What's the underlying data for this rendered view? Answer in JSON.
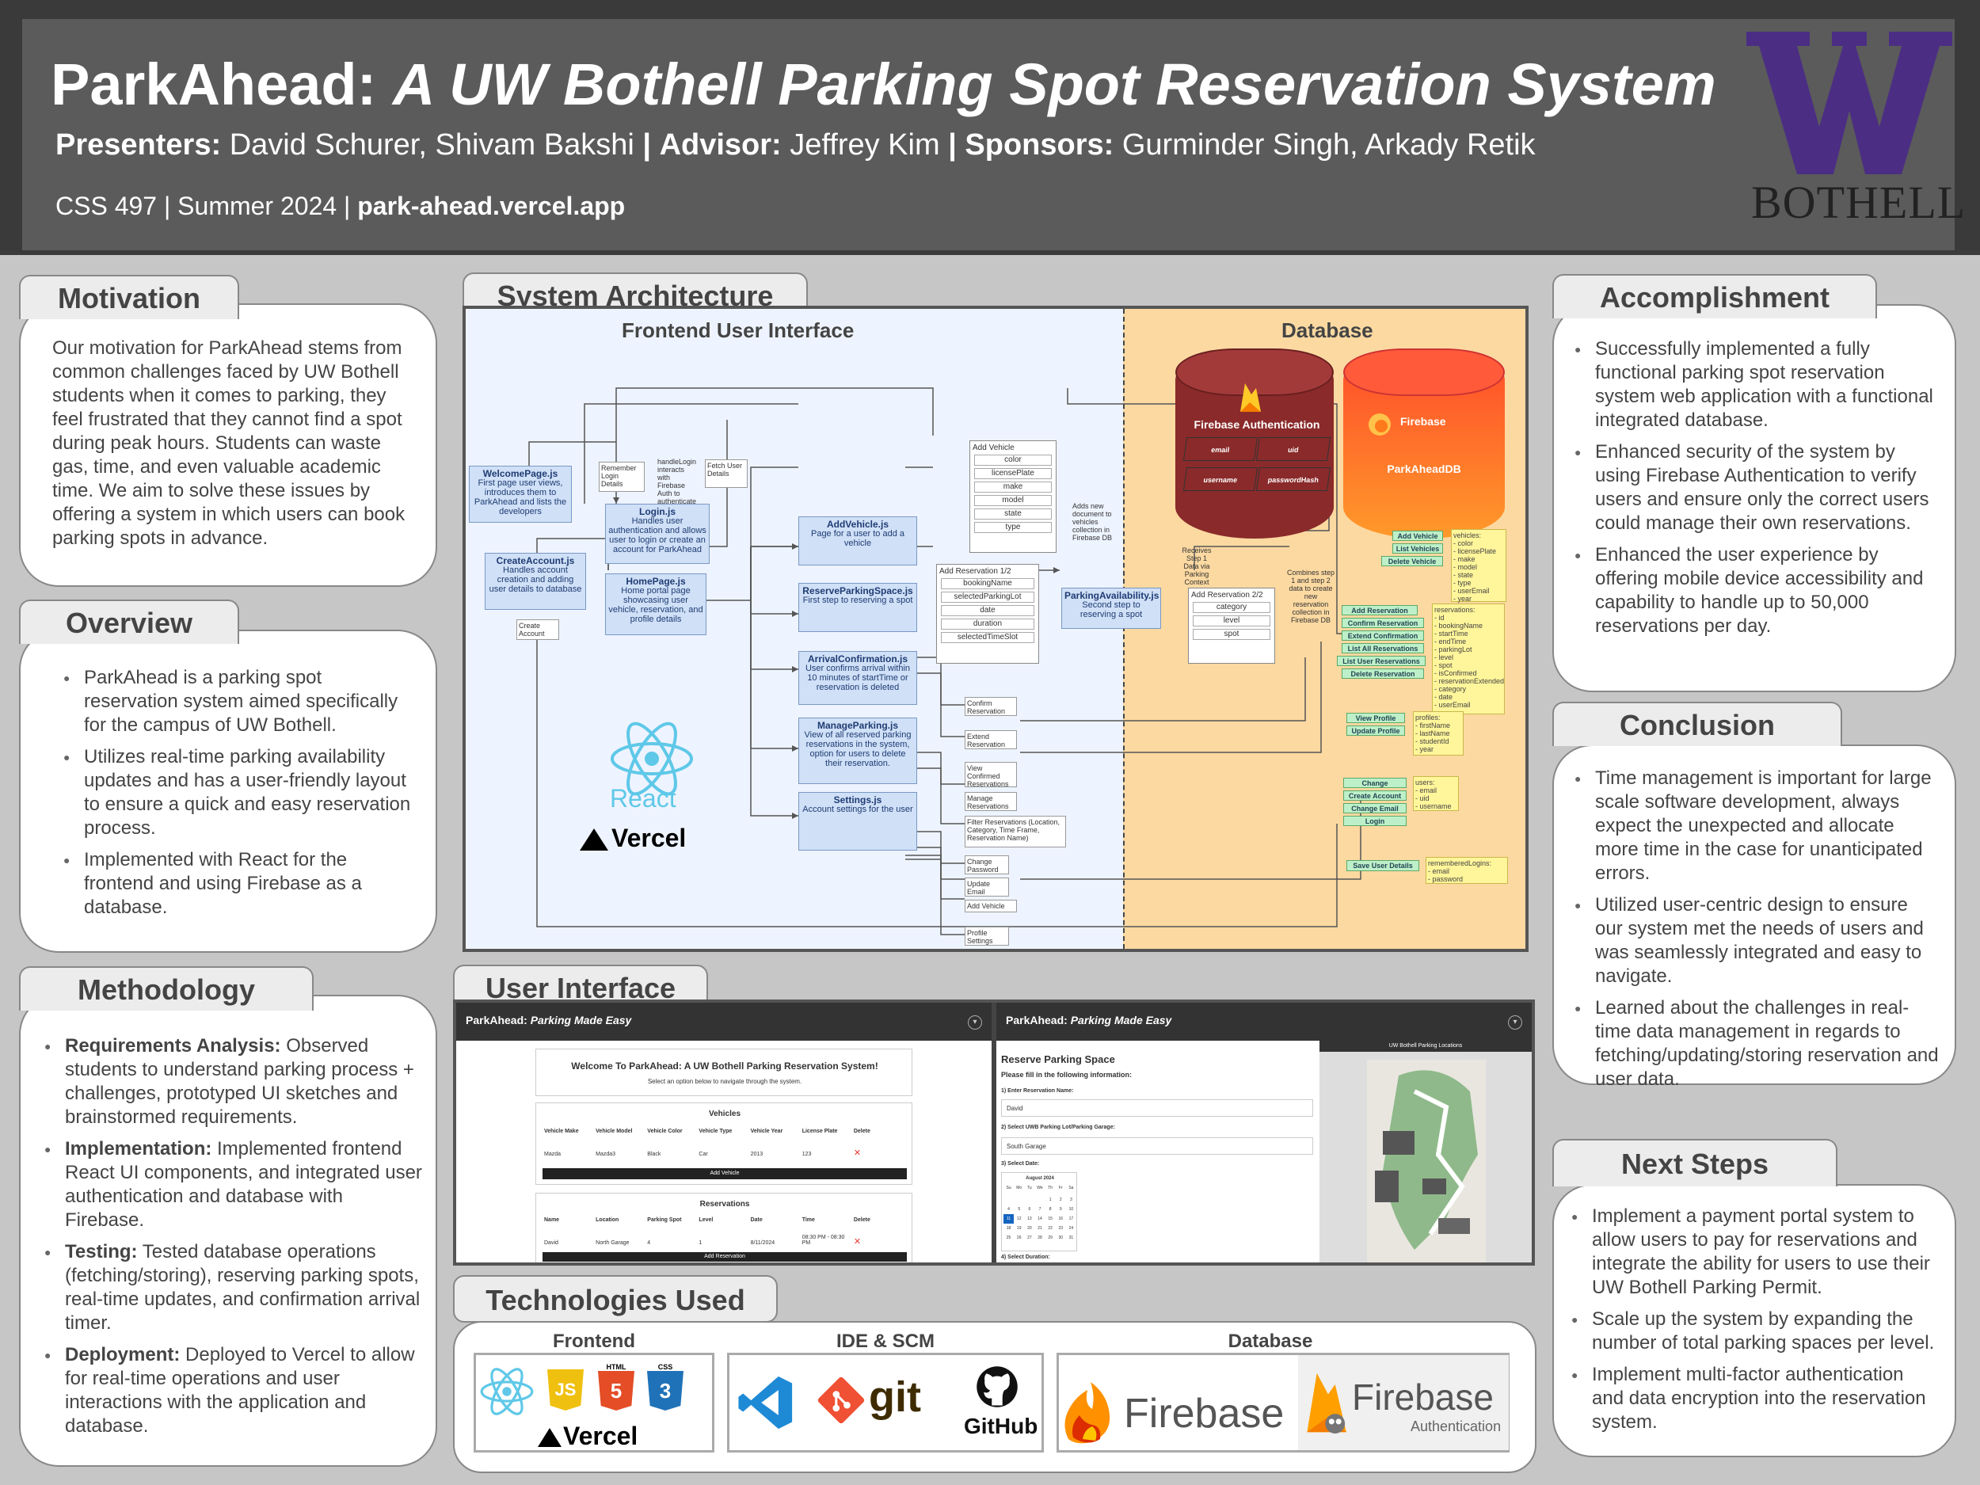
{
  "header": {
    "title_main": "ParkAhead:",
    "title_italic": "A UW Bothell Parking Spot Reservation System",
    "credits": [
      {
        "label": "Presenters:",
        "value": "David Schurer, Shivam Bakshi"
      },
      {
        "label": "Advisor:",
        "value": "Jeffrey Kim"
      },
      {
        "label": "Sponsors:",
        "value": "Gurminder Singh, Arkady Retik"
      }
    ],
    "separator": "|",
    "course": "CSS 497 | Summer 2024 |",
    "url": "park-ahead.vercel.app",
    "logo_text": "BOTHELL",
    "logo_color": "#4b2e83"
  },
  "motivation": {
    "title": "Motivation",
    "text": "Our motivation for ParkAhead stems from common challenges faced by UW Bothell students when it comes to parking, they feel frustrated that they cannot find a spot during peak hours. Students can waste gas, time, and even valuable academic time. We aim to solve these issues by offering a system in which users can book parking spots in advance."
  },
  "overview": {
    "title": "Overview",
    "items": [
      "ParkAhead is a parking spot reservation system aimed specifically for the campus of UW Bothell.",
      "Utilizes real-time parking availability updates and has a user-friendly layout to ensure a quick and easy reservation process.",
      "Implemented with React for the frontend and using Firebase as a database."
    ]
  },
  "methodology": {
    "title": "Methodology",
    "items": [
      {
        "label": "Requirements Analysis:",
        "text": "Observed students to understand parking process + challenges, prototyped UI sketches and brainstormed requirements."
      },
      {
        "label": "Implementation:",
        "text": "Implemented frontend React UI components, and integrated user authentication and database with Firebase."
      },
      {
        "label": "Testing:",
        "text": "Tested database operations (fetching/storing), reserving parking spots, real-time updates, and confirmation arrival timer."
      },
      {
        "label": "Deployment:",
        "text": "Deployed to Vercel to allow for real-time operations and user interactions with the application and database."
      }
    ]
  },
  "architecture": {
    "title": "System Architecture",
    "frontend_label": "Frontend User Interface",
    "database_label": "Database",
    "components": {
      "welcome": {
        "name": "WelcomePage.js",
        "desc": "First page user views, introduces them to ParkAhead and lists the developers"
      },
      "login": {
        "name": "Login.js",
        "desc": "Handles user authentication and allows user to login or create an account for ParkAhead"
      },
      "create": {
        "name": "CreateAccount.js",
        "desc": "Handles account creation and adding user details to database"
      },
      "home": {
        "name": "HomePage.js",
        "desc": "Home portal page showcasing user vehicle, reservation, and profile details"
      },
      "addvehicle": {
        "name": "AddVehicle.js",
        "desc": "Page for a user to add a vehicle"
      },
      "reserve": {
        "name": "ReserveParkingSpace.js",
        "desc": "First step to reserving a spot"
      },
      "arrival": {
        "name": "ArrivalConfirmation.js",
        "desc": "User confirms arrival within 10 minutes of startTime or reservation is deleted"
      },
      "manage": {
        "name": "ManageParking.js",
        "desc": "View of all reserved parking reservations in the system, option for users to delete their reservation."
      },
      "settings": {
        "name": "Settings.js",
        "desc": "Account settings for the user"
      },
      "availability": {
        "name": "ParkingAvailability.js",
        "desc": "Second step to reserving a spot"
      }
    },
    "notes": {
      "remember": "Remember Login Details",
      "handle": "handleLogin interacts with Firebase Auth to authenticate users in the system",
      "fetch": "Fetch User Details",
      "create_btn": "Create Account",
      "adds_new": "Adds new document to vehicles collection in Firebase DB",
      "receives": "Receives Step 1 Data via Parking Context",
      "combines": "Combines step 1 and step 2 data to create new reservation collection in Firebase DB"
    },
    "add_vehicle_form": {
      "title": "Add Vehicle",
      "fields": [
        "color",
        "licensePlate",
        "make",
        "model",
        "state",
        "type"
      ]
    },
    "add_res_1": {
      "title": "Add Reservation 1/2",
      "fields": [
        "bookingName",
        "selectedParkingLot",
        "date",
        "duration",
        "selectedTimeSlot"
      ]
    },
    "add_res_2": {
      "title": "Add Reservation 2/2",
      "fields": [
        "category",
        "level",
        "spot"
      ]
    },
    "actions": [
      "Confirm Reservation",
      "Extend Reservation",
      "View Confirmed Reservations",
      "Manage Reservations",
      "Filter Reservations (Location, Category, Time Frame, Reservation Name)",
      "Change Password",
      "Update Email",
      "Add Vehicle",
      "Profile Settings"
    ],
    "firebase_auth": {
      "label": "Firebase Authentication",
      "fields": [
        "email",
        "uid",
        "username",
        "passwordHash"
      ]
    },
    "firebase_db": {
      "label": "Firebase",
      "db_name": "ParkAheadDB"
    },
    "green_ops": [
      {
        "group": "vehicles",
        "ops": [
          "Add Vehicle",
          "List Vehicles",
          "Delete Vehicle"
        ],
        "fields": "vehicles:\n- color\n- licensePlate\n- make\n- model\n- state\n- type\n- userEmail\n- year"
      },
      {
        "group": "reservations",
        "ops": [
          "Add Reservation",
          "Confirm Reservation",
          "Extend Confirmation",
          "List All Reservations",
          "List User Reservations",
          "Delete Reservation"
        ],
        "fields": "reservations:\n- id\n- bookingName\n- startTime\n- endTime\n- parkingLot\n- level\n- spot\n- isConfirmed\n- reservationExtended\n- category\n- date\n- userEmail"
      },
      {
        "group": "profiles",
        "ops": [
          "View Profile",
          "Update Profile"
        ],
        "fields": "profiles:\n- firstName\n- lastName\n- studentId\n- year"
      },
      {
        "group": "users",
        "ops": [
          "Change Password",
          "Create Account",
          "Change Email",
          "Login"
        ],
        "fields": "users:\n- email\n- uid\n- username"
      },
      {
        "group": "rememberedLogins",
        "ops": [
          "Save User Details"
        ],
        "fields": "rememberedLogins:\n- email\n- password"
      }
    ],
    "react_label": "React",
    "vercel_label": "Vercel"
  },
  "user_interface": {
    "title": "User Interface",
    "app_bar_name": "ParkAhead:",
    "app_bar_tagline": "Parking Made Easy",
    "left": {
      "welcome": "Welcome To ParkAhead: A UW Bothell Parking Reservation System!",
      "sub": "Select an option below to navigate through the system.",
      "vehicles_title": "Vehicles",
      "vehicle_headers": [
        "Vehicle Make",
        "Vehicle Model",
        "Vehicle Color",
        "Vehicle Type",
        "Vehicle Year",
        "License Plate",
        "Delete"
      ],
      "vehicle_row": [
        "Mazda",
        "Mazda3",
        "Black",
        "Car",
        "2013",
        "123",
        "✕"
      ],
      "add_vehicle_btn": "Add Vehicle",
      "reservations_title": "Reservations",
      "res_headers": [
        "Name",
        "Location",
        "Parking Spot",
        "Level",
        "Date",
        "Time",
        "Delete"
      ],
      "res_row": [
        "David",
        "North Garage",
        "4",
        "1",
        "8/11/2024",
        "08:30 PM - 08:30 PM",
        "✕"
      ],
      "add_res_btn": "Add Reservation"
    },
    "right": {
      "heading": "Reserve Parking Space",
      "sub": "Please fill in the following information:",
      "q1": "1) Enter Reservation Name:",
      "q1_val": "David",
      "q2": "2) Select UWB Parking Lot/Parking Garage:",
      "q2_val": "South Garage",
      "q3": "3) Select Date:",
      "month": "August 2024",
      "days": [
        "Su",
        "Mo",
        "Tu",
        "We",
        "Th",
        "Fr",
        "Sa"
      ],
      "q4": "4) Select Duration:",
      "map_title": "UW Bothell Parking Locations"
    }
  },
  "technologies": {
    "title": "Technologies Used",
    "groups": [
      {
        "label": "Frontend",
        "logos": [
          "React",
          "JS",
          "HTML",
          "CSS",
          "Vercel"
        ]
      },
      {
        "label": "IDE & SCM",
        "logos": [
          "VS Code",
          "git",
          "GitHub"
        ]
      },
      {
        "label": "Database",
        "logos": [
          "Firebase",
          "Firebase",
          "Authentication"
        ]
      }
    ]
  },
  "accomplishment": {
    "title": "Accomplishment",
    "items": [
      "Successfully implemented a fully functional parking spot reservation system web application with a functional integrated database.",
      "Enhanced security of the system by using Firebase Authentication to verify users and ensure only the correct users could manage their own reservations.",
      "Enhanced the user experience by offering mobile device accessibility and capability to handle up to 50,000 reservations per day."
    ]
  },
  "conclusion": {
    "title": "Conclusion",
    "items": [
      "Time management is important for large scale software development, always expect the unexpected and allocate more time in the case for unanticipated errors.",
      "Utilized user-centric design to ensure our system met the needs of users and was seamlessly integrated and easy to navigate.",
      "Learned about the challenges in real-time data management in regards to fetching/updating/storing reservation and user data."
    ]
  },
  "next_steps": {
    "title": "Next Steps",
    "items": [
      "Implement a payment portal system to allow users to pay for reservations and integrate the ability for users to use their UW Bothell Parking Permit.",
      "Scale up the system by expanding the number of total parking spaces per level.",
      "Implement multi-factor authentication and data encryption into the reservation system."
    ]
  }
}
